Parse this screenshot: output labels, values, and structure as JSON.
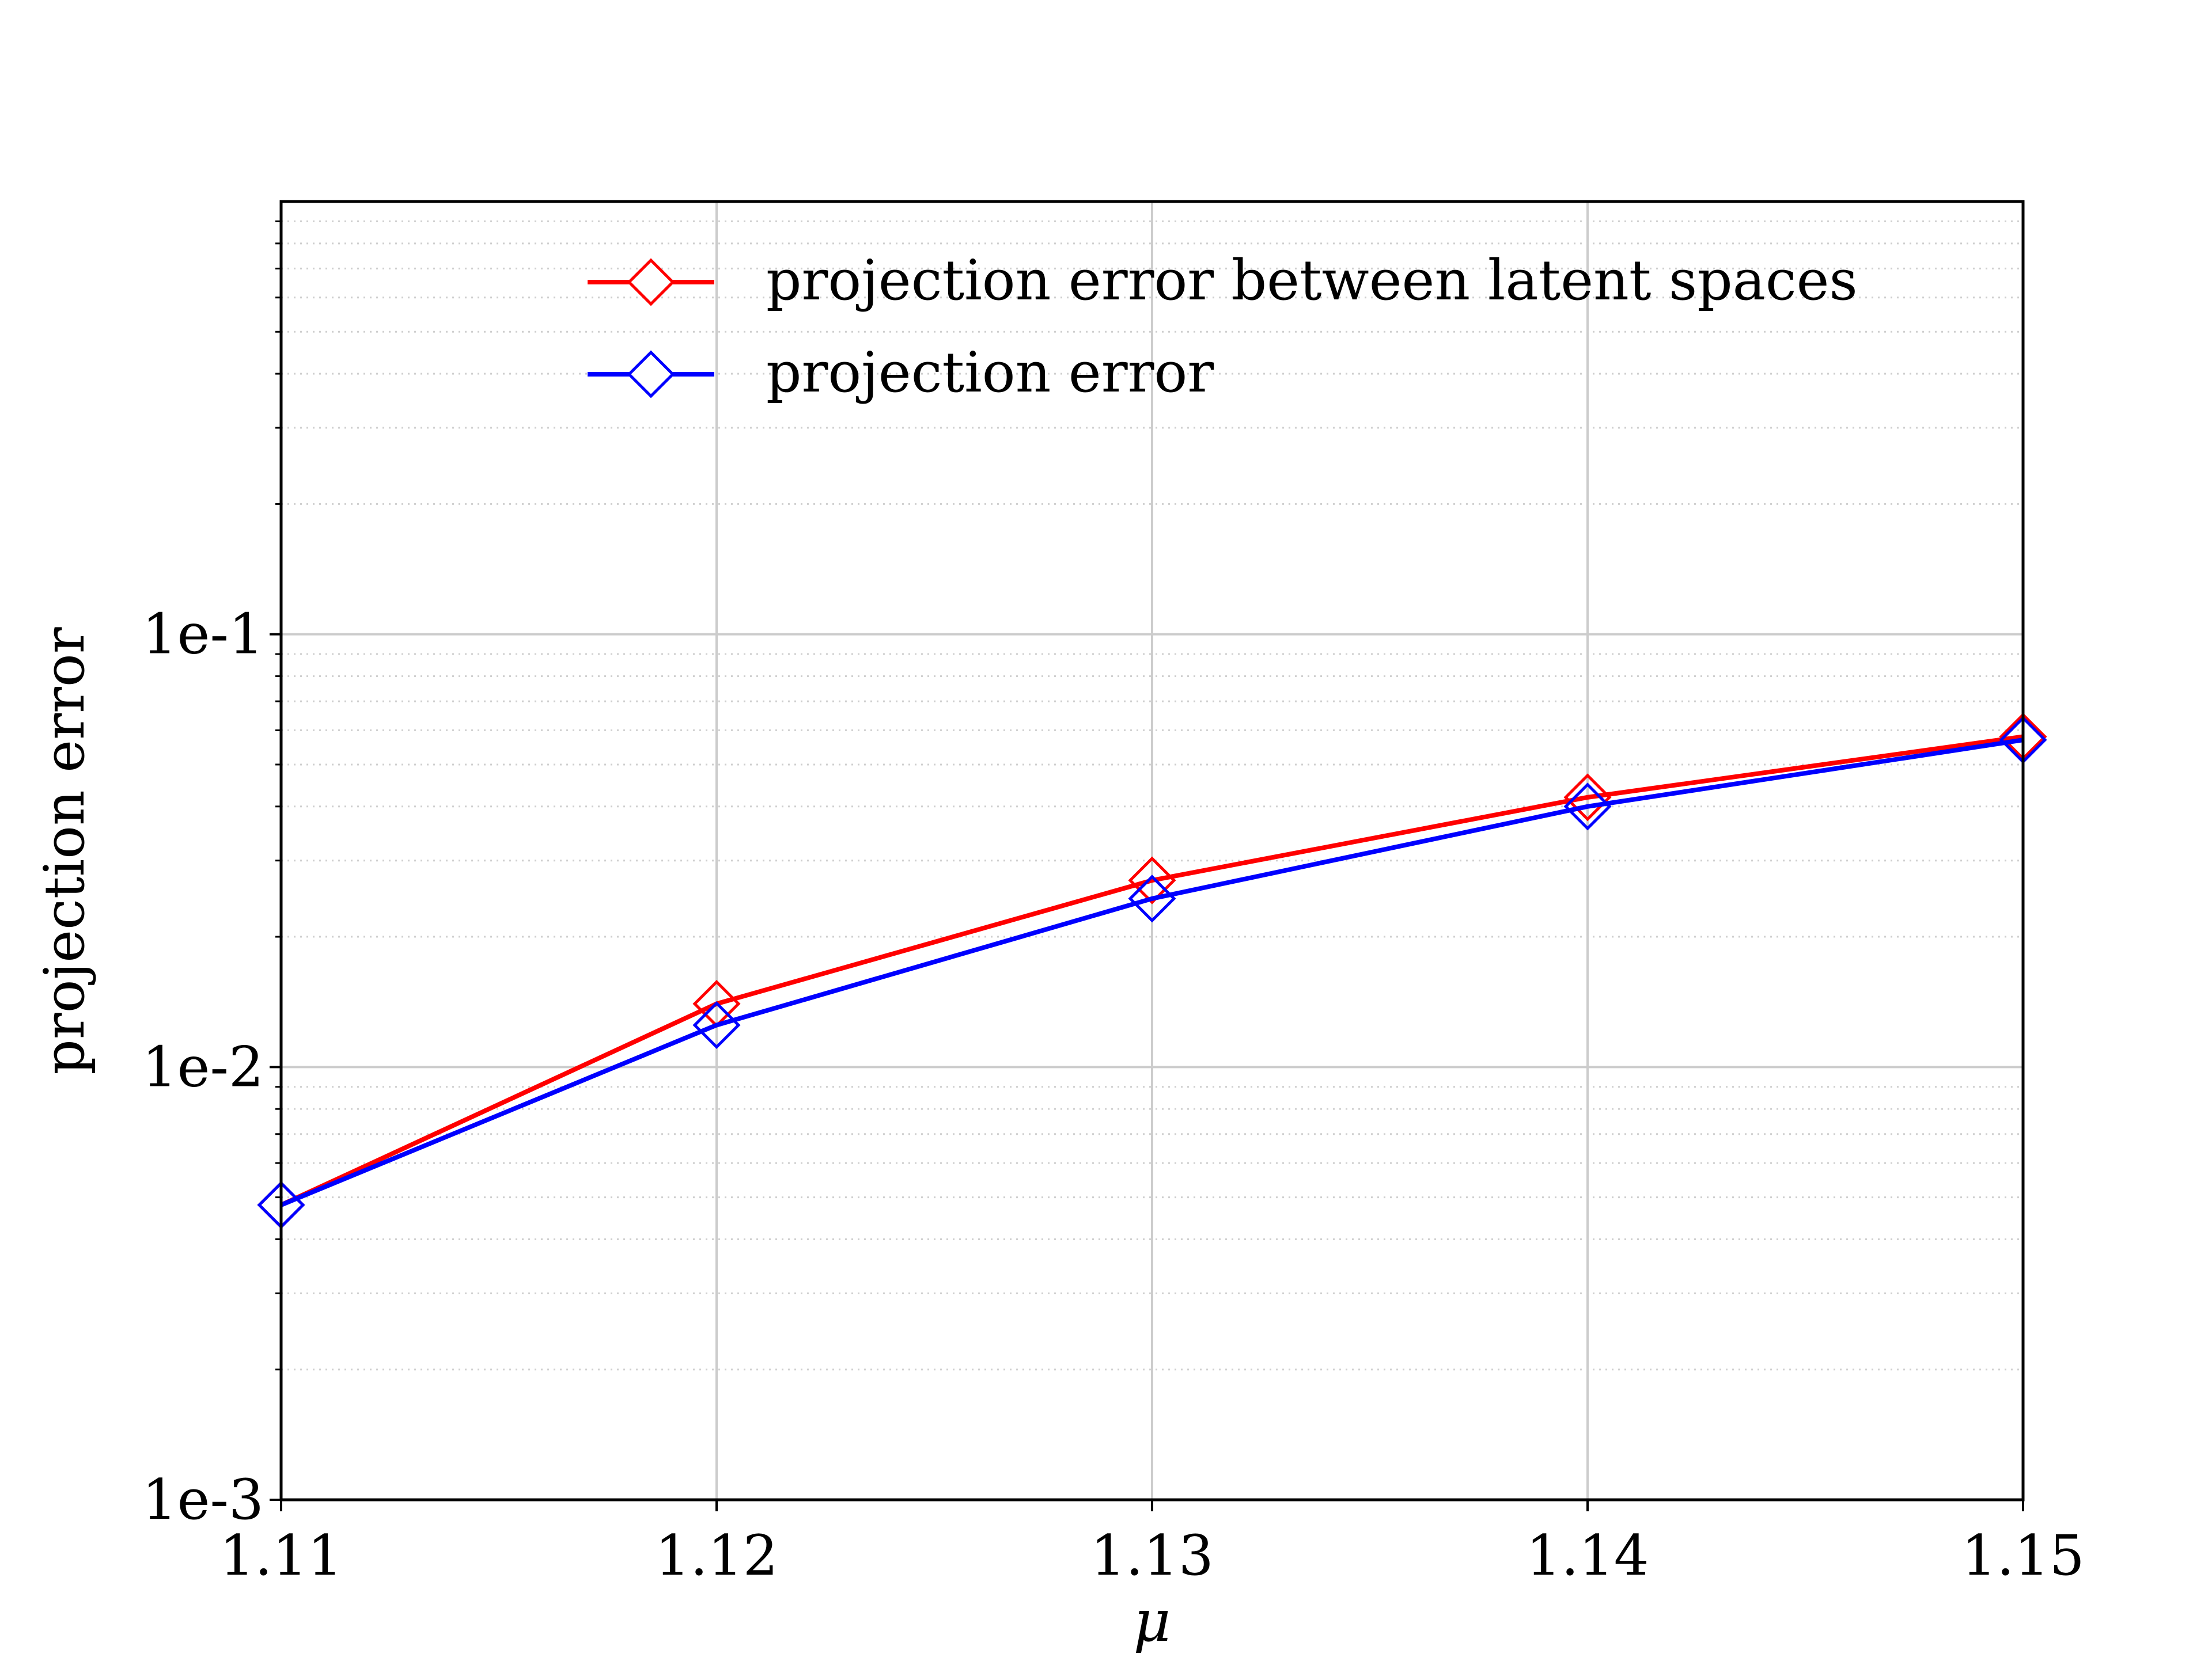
{
  "chart_data": {
    "type": "line",
    "title": "",
    "xlabel": "μ",
    "ylabel": "projection error",
    "x": [
      1.11,
      1.12,
      1.13,
      1.14,
      1.15
    ],
    "x_tick_labels": [
      "1.11",
      "1.12",
      "1.13",
      "1.14",
      "1.15"
    ],
    "y_tick_values": [
      0.001,
      0.01,
      0.1
    ],
    "y_tick_labels": [
      "1e-3",
      "1e-2",
      "1e-1"
    ],
    "xlim": [
      1.11,
      1.15
    ],
    "ylim": [
      0.001,
      1.0
    ],
    "y_scale": "log",
    "grid": true,
    "minor_grid": "dotted",
    "legend_position": "top-right",
    "series": [
      {
        "name": "projection error between latent spaces",
        "color": "#ff0000",
        "marker": "open-diamond",
        "values": [
          0.0048,
          0.014,
          0.027,
          0.042,
          0.058
        ]
      },
      {
        "name": "projection error",
        "color": "#0000ff",
        "marker": "open-diamond",
        "values": [
          0.0048,
          0.0125,
          0.0245,
          0.04,
          0.057
        ]
      }
    ]
  }
}
